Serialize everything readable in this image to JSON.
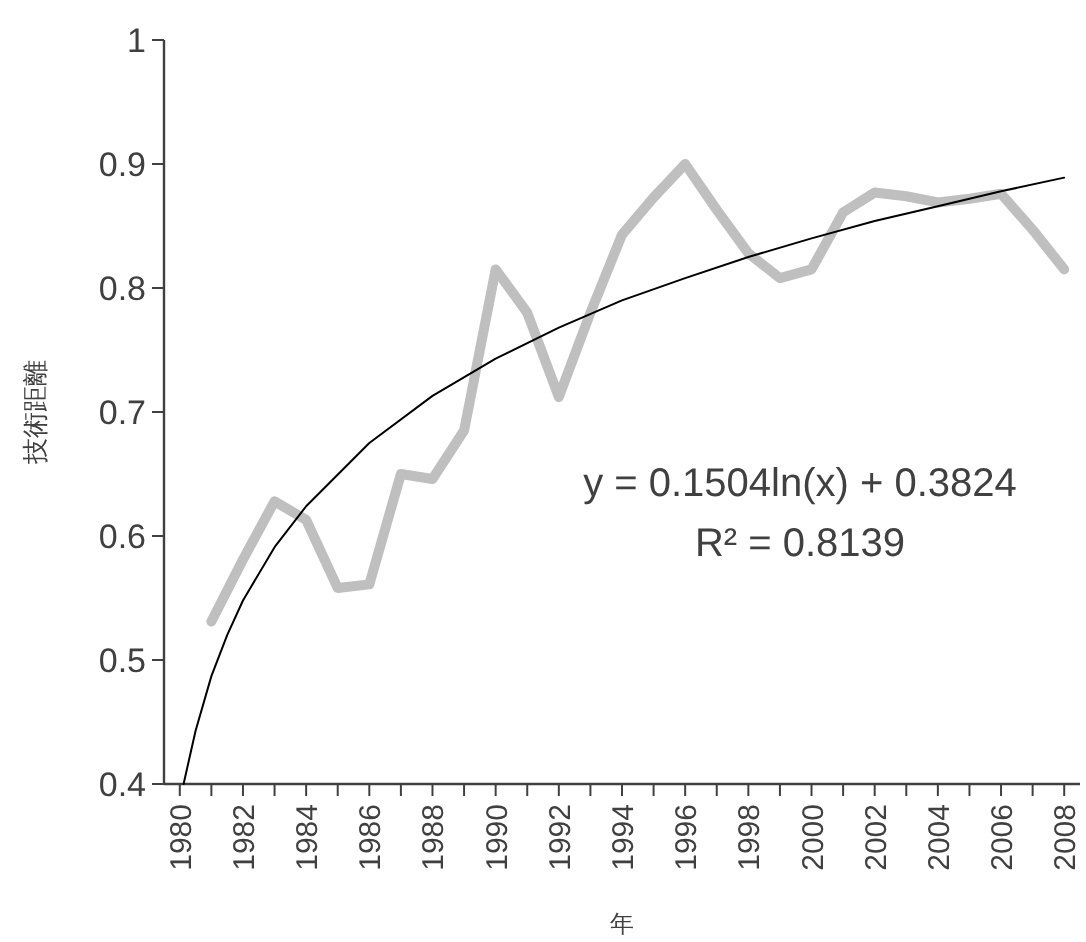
{
  "chart_data": {
    "type": "line",
    "xlabel": "年",
    "ylabel": "技術距離",
    "xlim": [
      1979.5,
      2008.5
    ],
    "xticks": [
      1980,
      {
        "value": 1981,
        "label": null
      },
      1982,
      {
        "value": 1983,
        "label": null
      },
      1984,
      {
        "value": 1985,
        "label": null
      },
      1986,
      {
        "value": 1987,
        "label": null
      },
      1988,
      {
        "value": 1989,
        "label": null
      },
      1990,
      {
        "value": 1991,
        "label": null
      },
      1992,
      {
        "value": 1993,
        "label": null
      },
      1994,
      {
        "value": 1995,
        "label": null
      },
      1996,
      {
        "value": 1997,
        "label": null
      },
      1998,
      {
        "value": 1999,
        "label": null
      },
      2000,
      {
        "value": 2001,
        "label": null
      },
      2002,
      {
        "value": 2003,
        "label": null
      },
      2004,
      {
        "value": 2005,
        "label": null
      },
      2006,
      {
        "value": 2007,
        "label": null
      },
      2008
    ],
    "ylim": [
      0.4,
      1
    ],
    "yticks": [
      0.4,
      0.5,
      0.6,
      0.7,
      0.8,
      0.9,
      1
    ],
    "grid": false,
    "series": [
      {
        "color": "#bfbfbf",
        "x": [
          1981,
          1982,
          1983,
          1984,
          1985,
          1986,
          1987,
          1988,
          1989,
          1990,
          1991,
          1992,
          1993,
          1994,
          1995,
          1996,
          1997,
          1998,
          1999,
          2000,
          2001,
          2002,
          2003,
          2004,
          2005,
          2006,
          2007,
          2008
        ],
        "values": [
          0.531,
          0.581,
          0.628,
          0.613,
          0.558,
          0.561,
          0.65,
          0.646,
          0.685,
          0.815,
          0.78,
          0.712,
          0.78,
          0.843,
          0.873,
          0.9,
          0.863,
          0.828,
          0.808,
          0.815,
          0.861,
          0.877,
          0.874,
          0.869,
          0.872,
          0.876,
          0.847,
          0.815
        ]
      },
      {
        "type": "line",
        "color": "#000000",
        "x": [
          1980.12,
          1980.5,
          1981,
          1981.5,
          1982,
          1983,
          1984,
          1986,
          1988,
          1990,
          1992,
          1994,
          1996,
          1998,
          2000,
          2002,
          2004,
          2006,
          2008
        ],
        "values": [
          0.4,
          0.443,
          0.487,
          0.52,
          0.548,
          0.591,
          0.624,
          0.675,
          0.713,
          0.743,
          0.768,
          0.79,
          0.808,
          0.825,
          0.84,
          0.854,
          0.866,
          0.878,
          0.889
        ]
      }
    ],
    "annotations": [
      "y = 0.1504ln(x) + 0.3824",
      "R² = 0.8139"
    ]
  }
}
